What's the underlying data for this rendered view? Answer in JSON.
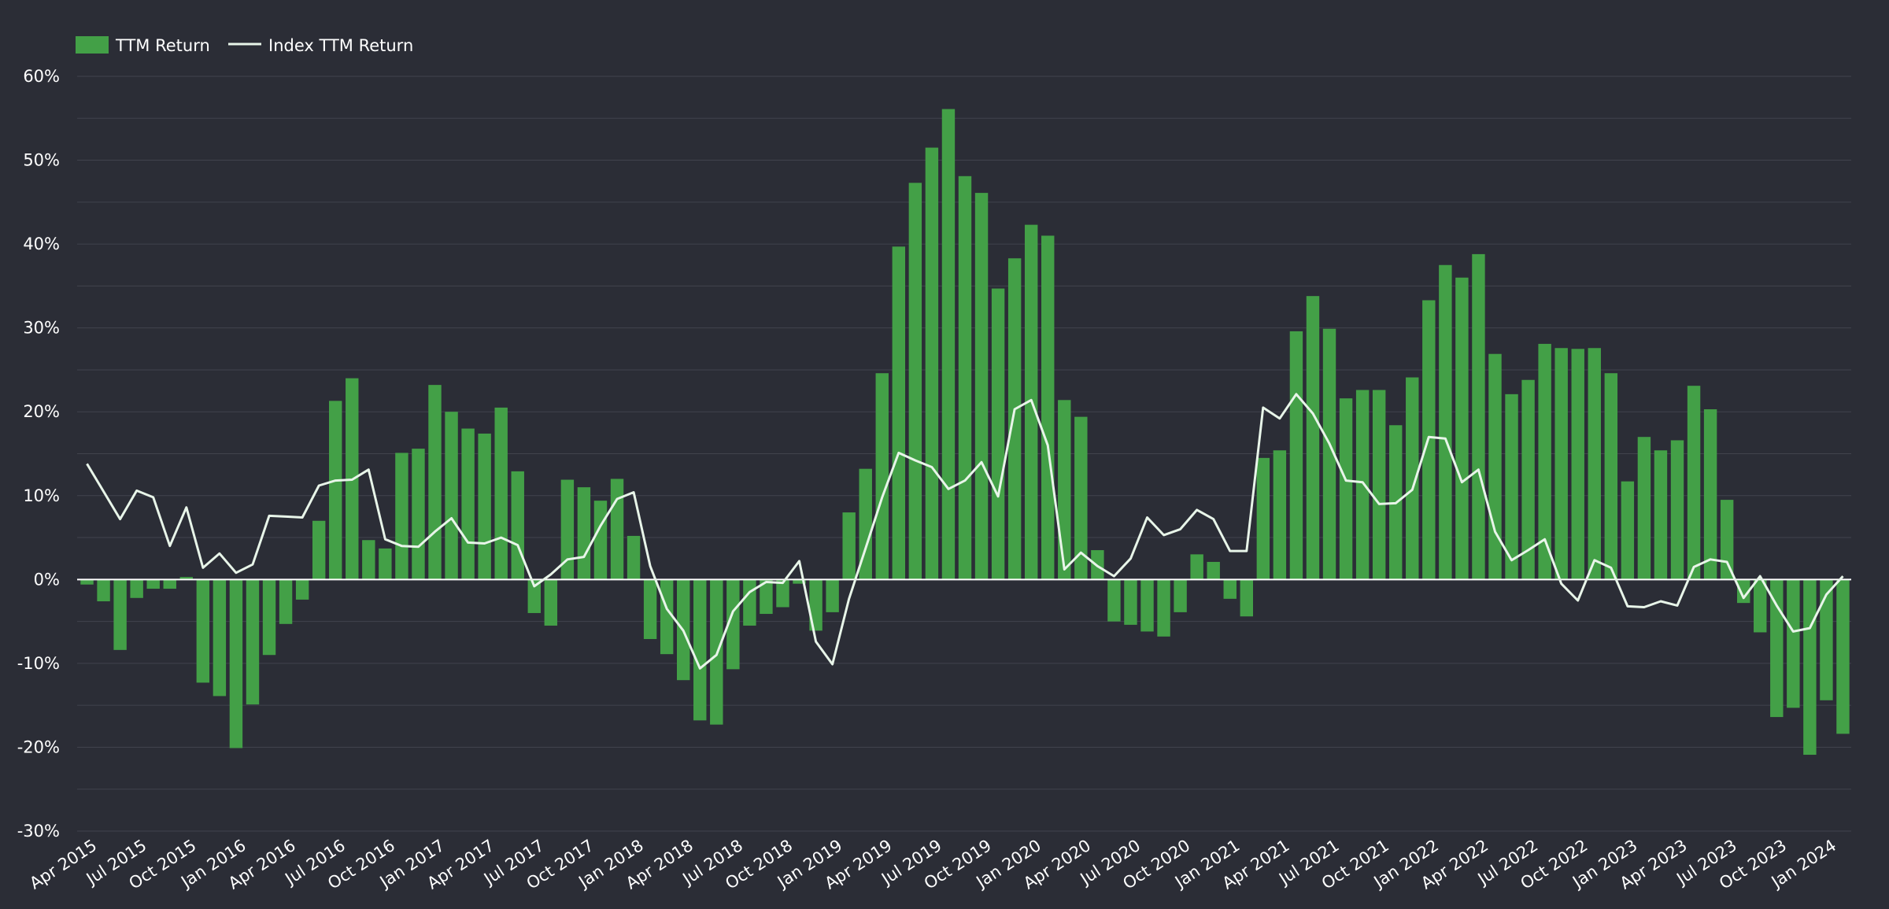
{
  "chart_data": {
    "type": "bar",
    "legend": [
      {
        "name": "TTM Return",
        "kind": "bar",
        "color": "#43a047"
      },
      {
        "name": "Index TTM Return",
        "kind": "line",
        "color": "#e8f5e9"
      }
    ],
    "legend_position": "top-left",
    "grid": true,
    "ylim": [
      -30,
      60
    ],
    "y_ticks": [
      -30,
      -20,
      -10,
      0,
      10,
      20,
      30,
      40,
      50,
      60
    ],
    "y_tick_labels": [
      "-30%",
      "-20%",
      "-10%",
      "0%",
      "10%",
      "20%",
      "30%",
      "40%",
      "50%",
      "60%"
    ],
    "x_start": "Apr 2015",
    "x_tick_labels": [
      "Apr 2015",
      "Jul 2015",
      "Oct 2015",
      "Jan 2016",
      "Apr 2016",
      "Jul 2016",
      "Oct 2016",
      "Jan 2017",
      "Apr 2017",
      "Jul 2017",
      "Oct 2017",
      "Jan 2018",
      "Apr 2018",
      "Jul 2018",
      "Oct 2018",
      "Jan 2019",
      "Apr 2019",
      "Jul 2019",
      "Oct 2019",
      "Jan 2020",
      "Apr 2020",
      "Jul 2020",
      "Oct 2020",
      "Jan 2021",
      "Apr 2021",
      "Jul 2021",
      "Oct 2021",
      "Jan 2022",
      "Apr 2022",
      "Jul 2022",
      "Oct 2022",
      "Jan 2023",
      "Apr 2023",
      "Jul 2023",
      "Oct 2023",
      "Jan 2024"
    ],
    "series": [
      {
        "name": "TTM Return",
        "type": "bar",
        "values": [
          -0.6,
          -2.6,
          -8.4,
          -2.2,
          -1.1,
          -1.1,
          0.3,
          -12.3,
          -13.9,
          -20.1,
          -14.9,
          -9.0,
          -5.3,
          -2.4,
          7.0,
          21.3,
          24.0,
          4.7,
          3.7,
          15.1,
          15.6,
          23.2,
          20.0,
          18.0,
          17.4,
          20.5,
          12.9,
          -4.0,
          -5.5,
          11.9,
          11.0,
          9.4,
          12.0,
          5.2,
          -7.1,
          -8.9,
          -12.0,
          -16.8,
          -17.3,
          -10.7,
          -5.5,
          -4.1,
          -3.3,
          -0.5,
          -6.1,
          -3.9,
          8.0,
          13.2,
          24.6,
          39.7,
          47.3,
          51.5,
          56.1,
          48.1,
          46.1,
          34.7,
          38.3,
          42.3,
          41.0,
          21.4,
          19.4,
          3.5,
          -5.0,
          -5.4,
          -6.2,
          -6.8,
          -3.9,
          3.0,
          2.1,
          -2.3,
          -4.4,
          14.5,
          15.4,
          29.6,
          33.8,
          29.9,
          21.6,
          22.6,
          22.6,
          18.4,
          24.1,
          33.3,
          37.5,
          36.0,
          38.8,
          26.9,
          22.1,
          23.8,
          28.1,
          27.6,
          27.5,
          27.6,
          24.6,
          11.7,
          17.0,
          15.4,
          16.6,
          23.1,
          20.3,
          9.5,
          -2.8,
          -6.3,
          -16.4,
          -15.3,
          -20.9,
          -14.4,
          -18.4
        ],
        "color": "#43a047"
      },
      {
        "name": "Index TTM Return",
        "type": "line",
        "values": [
          13.8,
          10.5,
          7.2,
          10.6,
          9.8,
          4.0,
          8.6,
          1.4,
          3.1,
          0.8,
          1.8,
          7.6,
          7.5,
          7.4,
          11.2,
          11.8,
          11.9,
          13.1,
          4.8,
          4.0,
          3.9,
          5.7,
          7.3,
          4.4,
          4.3,
          5.0,
          4.1,
          -0.8,
          0.6,
          2.4,
          2.7,
          6.4,
          9.6,
          10.4,
          1.6,
          -3.5,
          -6.1,
          -10.6,
          -9.0,
          -3.8,
          -1.5,
          -0.3,
          -0.4,
          2.2,
          -7.4,
          -10.1,
          -2.3,
          3.7,
          9.8,
          15.1,
          14.2,
          13.4,
          10.8,
          11.8,
          14.0,
          9.9,
          20.3,
          21.4,
          16.0,
          1.2,
          3.2,
          1.6,
          0.4,
          2.5,
          7.4,
          5.3,
          6.0,
          8.3,
          7.2,
          3.4,
          3.4,
          20.5,
          19.2,
          22.1,
          19.8,
          16.2,
          11.8,
          11.6,
          9.0,
          9.1,
          10.7,
          17.0,
          16.8,
          11.6,
          13.1,
          5.7,
          2.3,
          3.5,
          4.8,
          -0.5,
          -2.5,
          2.3,
          1.4,
          -3.2,
          -3.3,
          -2.6,
          -3.1,
          1.5,
          2.4,
          2.1,
          -2.2,
          0.4,
          -3.1,
          -6.2,
          -5.8,
          -1.8,
          0.4
        ],
        "color": "#e8f5e9"
      }
    ]
  }
}
